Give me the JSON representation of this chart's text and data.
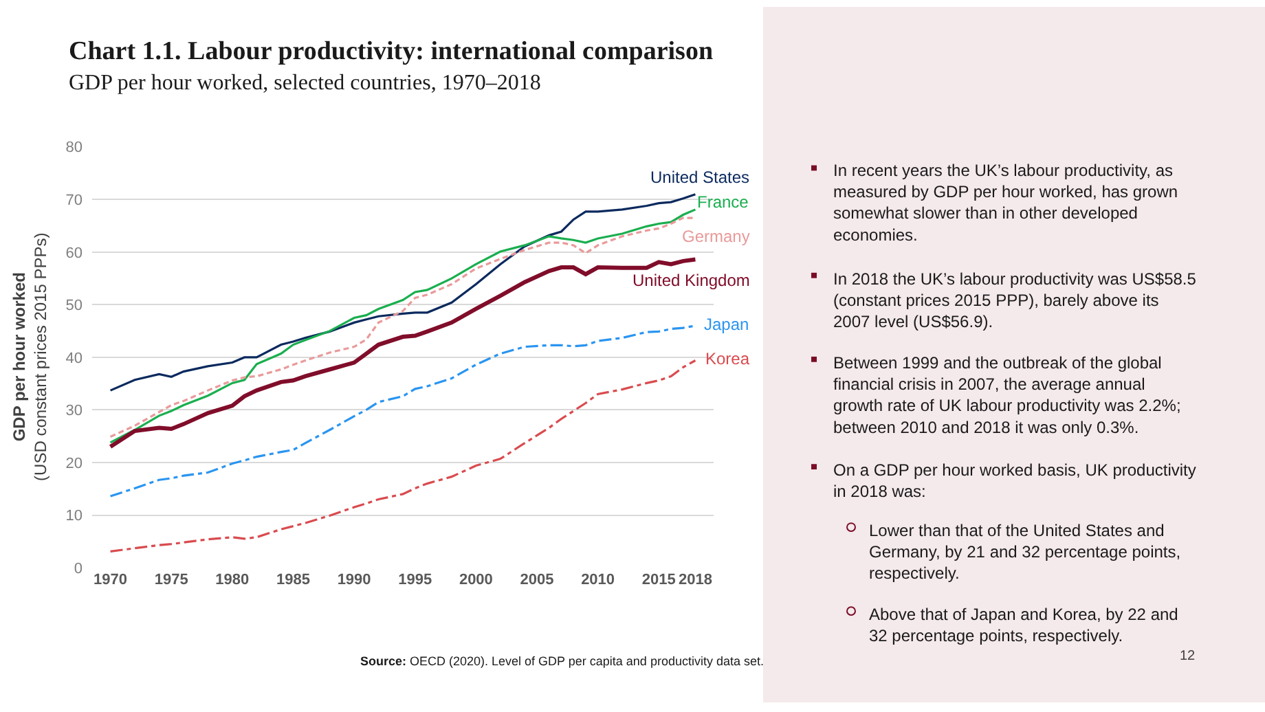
{
  "chart_data": {
    "type": "line",
    "title": "Chart 1.1. Labour productivity: international comparison",
    "subtitle": "GDP per hour worked, selected countries, 1970–2018",
    "ylabel": "GDP per hour worked\n(USD constant prices 2015 PPPs)",
    "x": [
      1970,
      1972,
      1974,
      1975,
      1976,
      1978,
      1980,
      1981,
      1982,
      1984,
      1985,
      1986,
      1988,
      1990,
      1991,
      1992,
      1994,
      1995,
      1996,
      1998,
      2000,
      2002,
      2004,
      2006,
      2007,
      2008,
      2009,
      2010,
      2012,
      2014,
      2015,
      2016,
      2017,
      2018
    ],
    "xlim": [
      1968.5,
      2019.5
    ],
    "xticks": [
      1970,
      1975,
      1980,
      1985,
      1990,
      1995,
      2000,
      2005,
      2010,
      2015,
      2018
    ],
    "ylim": [
      0,
      80
    ],
    "yticks": [
      0,
      10,
      20,
      30,
      40,
      50,
      60,
      70,
      80
    ],
    "grid": "y",
    "legend": false,
    "marker": "none",
    "series": [
      {
        "name": "United States",
        "color": "#0b2a5e",
        "line_style": "solid",
        "values": [
          33.7,
          35.7,
          36.8,
          36.3,
          37.3,
          38.3,
          39,
          40,
          40,
          42.4,
          43,
          43.7,
          44.9,
          46.6,
          47.2,
          47.8,
          48.3,
          48.5,
          48.5,
          50.4,
          53.9,
          57.7,
          61.1,
          63.2,
          63.9,
          66.2,
          67.7,
          67.7,
          68.1,
          68.8,
          69.3,
          69.5,
          70.2,
          71.0
        ]
      },
      {
        "name": "France",
        "color": "#1aae4f",
        "line_style": "solid",
        "values": [
          23.8,
          26.2,
          28.9,
          29.8,
          30.9,
          32.7,
          35.1,
          35.7,
          38.7,
          40.7,
          42.4,
          43.3,
          45,
          47.5,
          48,
          49.2,
          50.9,
          52.4,
          52.8,
          55,
          57.7,
          60.1,
          61.3,
          63,
          62.6,
          62.3,
          61.8,
          62.6,
          63.5,
          64.9,
          65.4,
          65.7,
          67.1,
          68.1
        ]
      },
      {
        "name": "Germany",
        "color": "#e99a9a",
        "line_style": "dashed",
        "values": [
          24.9,
          27,
          29.6,
          30.9,
          31.7,
          33.7,
          35.6,
          36.2,
          36.4,
          37.7,
          38.6,
          39.4,
          40.9,
          42,
          43.4,
          46.6,
          48.8,
          51.3,
          51.9,
          53.9,
          56.9,
          58.7,
          60.4,
          61.8,
          61.8,
          61.3,
          59.8,
          61.3,
          63,
          64.1,
          64.5,
          65.4,
          66.5,
          66.5
        ]
      },
      {
        "name": "United Kingdom",
        "color": "#800d2a",
        "line_style": "solid",
        "values": [
          23,
          26,
          26.6,
          26.4,
          27.3,
          29.4,
          30.8,
          32.6,
          33.7,
          35.3,
          35.6,
          36.4,
          37.7,
          39,
          40.7,
          42.4,
          43.9,
          44.1,
          44.9,
          46.6,
          49.2,
          51.7,
          54.3,
          56.4,
          57.1,
          57.1,
          55.8,
          57.1,
          57,
          57,
          58.1,
          57.7,
          58.3,
          58.6
        ]
      },
      {
        "name": "Japan",
        "color": "#2a95f0",
        "line_style": "dashdot",
        "values": [
          13.6,
          15.1,
          16.7,
          17,
          17.5,
          18.1,
          19.8,
          20.4,
          21.1,
          22,
          22.4,
          23.7,
          26.2,
          28.8,
          30,
          31.5,
          32.6,
          34,
          34.5,
          36,
          38.6,
          40.7,
          42,
          42.3,
          42.3,
          42.1,
          42.3,
          43.1,
          43.7,
          44.8,
          44.9,
          45.4,
          45.6,
          46
        ]
      },
      {
        "name": "Korea",
        "color": "#d94b4f",
        "line_style": "dashdot",
        "values": [
          3.1,
          3.7,
          4.3,
          4.5,
          4.8,
          5.4,
          5.8,
          5.5,
          5.8,
          7.3,
          7.9,
          8.5,
          9.9,
          11.5,
          12.2,
          13,
          14,
          15.1,
          16,
          17.3,
          19.4,
          20.7,
          23.7,
          26.6,
          28.3,
          29.8,
          31.3,
          33,
          33.9,
          35.1,
          35.6,
          36.4,
          38.1,
          39.4
        ]
      }
    ],
    "annotations": [
      "In recent years the UK’s labour productivity, as measured by GDP per hour worked, has grown somewhat slower than in other developed economies.",
      "In 2018 the UK’s labour productivity was US$58.5 (constant prices 2015 PPP), barely above its 2007 level (US$56.9).",
      "Between 1999 and the outbreak of the global financial crisis in 2007, the average annual growth rate of UK labour productivity was 2.2%; between 2010 and 2018 it was only 0.3%.",
      "On a GDP per hour worked basis, UK productivity in 2018 was:",
      "Lower than that of the United States and Germany, by 21 and 32 percentage points, respectively.",
      "Above that of Japan and Korea, by 22 and 32 percentage points, respectively.",
      "Source: OECD (2020). Level of GDP per capita and productivity data set.",
      "12"
    ]
  }
}
